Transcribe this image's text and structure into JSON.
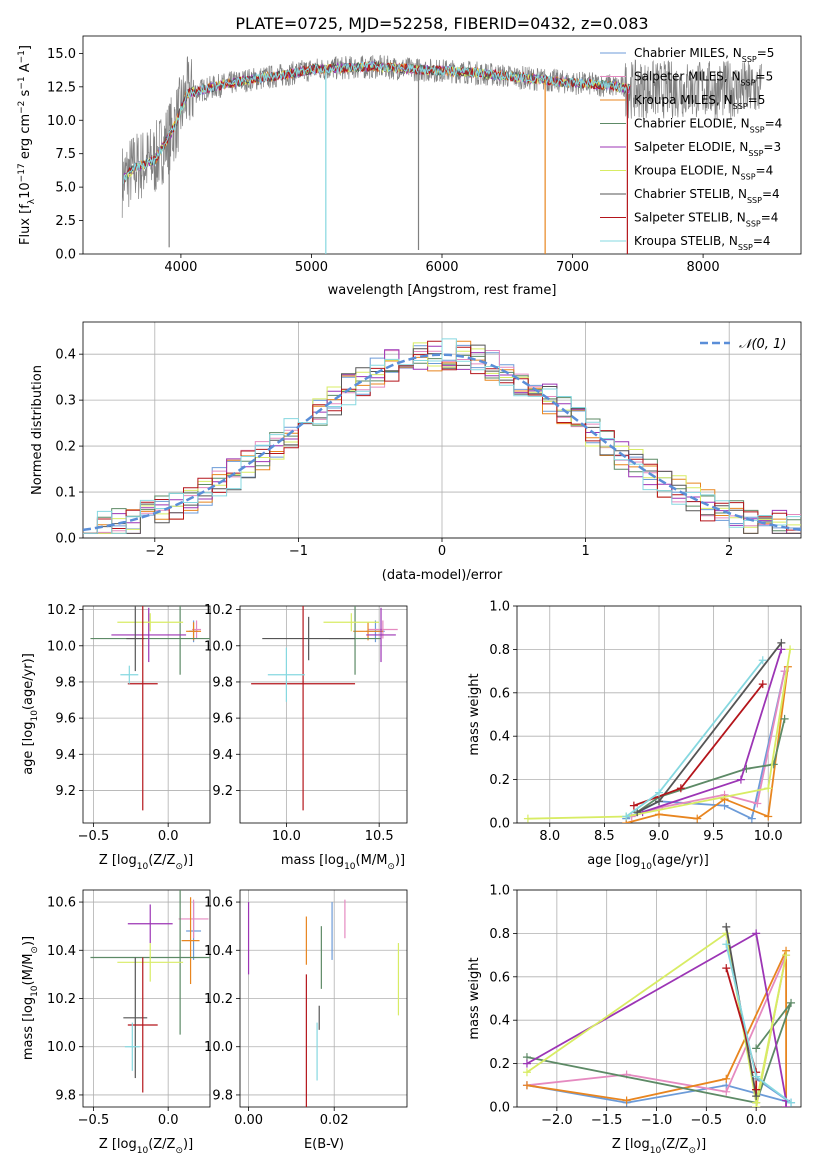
{
  "title": "PLATE=0725, MJD=52258, FIBERID=0432, z=0.083",
  "series_colors": {
    "chabrier_miles": "#6c9bd8",
    "salpeter_miles": "#e58ac0",
    "kroupa_miles": "#e8851f",
    "chabrier_elodie": "#5d8a66",
    "salpeter_elodie": "#9c35b5",
    "kroupa_elodie": "#d8ec64",
    "chabrier_stelib": "#555555",
    "salpeter_stelib": "#b4151b",
    "kroupa_stelib": "#86d8e0",
    "observed": "#808080",
    "normal_curve": "#5a8ed8"
  },
  "chart_data": [
    {
      "id": "spectrum",
      "type": "line",
      "title": "PLATE=0725, MJD=52258, FIBERID=0432, z=0.083",
      "xlabel": "wavelength [Angstrom, rest frame]",
      "ylabel_parts": {
        "a": "Flux [f",
        "sub1": "λ",
        "b": "10",
        "sup1": "−17",
        "c": " erg cm",
        "sup2": "−2",
        "d": " s",
        "sup3": "−1",
        "e": " A",
        "sup4": "−1",
        "f": "]"
      },
      "xlim": [
        3250,
        8750
      ],
      "ylim": [
        0,
        16.3
      ],
      "xticks": [
        4000,
        5000,
        6000,
        7000,
        8000
      ],
      "yticks": [
        0.0,
        2.5,
        5.0,
        7.5,
        10.0,
        12.5,
        15.0
      ],
      "legend_position": "upper right",
      "legend": [
        {
          "key": "chabrier_miles",
          "pre": "Chabrier MILES, N",
          "sub": "SSP",
          "post": "=5"
        },
        {
          "key": "salpeter_miles",
          "pre": "Salpeter MILES, N",
          "sub": "SSP",
          "post": "=5"
        },
        {
          "key": "kroupa_miles",
          "pre": "Kroupa MILES, N",
          "sub": "SSP",
          "post": "=5"
        },
        {
          "key": "chabrier_elodie",
          "pre": "Chabrier ELODIE, N",
          "sub": "SSP",
          "post": "=4"
        },
        {
          "key": "salpeter_elodie",
          "pre": "Salpeter ELODIE, N",
          "sub": "SSP",
          "post": "=3"
        },
        {
          "key": "kroupa_elodie",
          "pre": "Kroupa ELODIE, N",
          "sub": "SSP",
          "post": "=4"
        },
        {
          "key": "chabrier_stelib",
          "pre": "Chabrier STELIB, N",
          "sub": "SSP",
          "post": "=4"
        },
        {
          "key": "salpeter_stelib",
          "pre": "Salpeter STELIB, N",
          "sub": "SSP",
          "post": "=4"
        },
        {
          "key": "kroupa_stelib",
          "pre": "Kroupa STELIB, N",
          "sub": "SSP",
          "post": "=4"
        }
      ],
      "continuum": {
        "x": [
          3550,
          3650,
          3800,
          3950,
          4050,
          4300,
          4500,
          4800,
          5000,
          5200,
          5500,
          5800,
          6200,
          6600,
          7000,
          7300,
          7450
        ],
        "y": [
          5.5,
          6.5,
          7.0,
          9.5,
          12.0,
          12.6,
          13.0,
          13.4,
          13.8,
          13.9,
          14.0,
          13.8,
          13.6,
          13.2,
          12.8,
          12.6,
          12.3
        ]
      },
      "dips": [
        {
          "x": 5110,
          "y": 0.0
        },
        {
          "x": 6790,
          "y": 0.0
        },
        {
          "x": 7420,
          "y": 0.0
        },
        {
          "x": 3910,
          "y": 0.5
        },
        {
          "x": 5820,
          "y": 0.3
        }
      ]
    },
    {
      "id": "residuals",
      "type": "step",
      "xlabel": "(data-model)/error",
      "ylabel": "Normed distribution",
      "xlim": [
        -2.5,
        2.5
      ],
      "ylim": [
        0,
        0.47
      ],
      "xticks": [
        -2,
        -1,
        0,
        1,
        2
      ],
      "yticks": [
        0.0,
        0.1,
        0.2,
        0.3,
        0.4
      ],
      "grid": true,
      "legend_position": "upper right",
      "legend": [
        {
          "key": "normal_curve",
          "label": "𝒩(0, 1)"
        }
      ]
    },
    {
      "id": "age_vs_Z",
      "type": "errorbar",
      "xlabel_parts": {
        "a": "Z [log",
        "sub": "10",
        "b": "(Z/Z",
        "sub2": "⊙",
        "c": ")]"
      },
      "ylabel_parts": {
        "a": "age  [log",
        "sub": "10",
        "b": "(age/yr)]"
      },
      "xlim": [
        -0.57,
        0.28
      ],
      "ylim": [
        9.02,
        10.22
      ],
      "xticks": [
        -0.5,
        0.0
      ],
      "yticks": [
        9.2,
        9.4,
        9.6,
        9.8,
        10.0,
        10.2
      ],
      "grid": true,
      "points": [
        {
          "key": "chabrier_miles",
          "x": 0.17,
          "y": 10.08,
          "xerr": 0.03,
          "yerr": 0.06
        },
        {
          "key": "salpeter_miles",
          "x": 0.19,
          "y": 10.09,
          "xerr": 0.03,
          "yerr": 0.05
        },
        {
          "key": "kroupa_miles",
          "x": 0.17,
          "y": 10.08,
          "xerr": 0.05,
          "yerr": 0.05
        },
        {
          "key": "chabrier_elodie",
          "x": 0.08,
          "y": 10.04,
          "xerr": 0.6,
          "yerr": 0.2
        },
        {
          "key": "salpeter_elodie",
          "x": -0.13,
          "y": 10.06,
          "xerr": 0.25,
          "yerr": 0.15
        },
        {
          "key": "kroupa_elodie",
          "x": -0.12,
          "y": 10.13,
          "xerr": 0.22,
          "yerr": 0.05
        },
        {
          "key": "chabrier_stelib",
          "x": -0.22,
          "y": 10.04,
          "xerr": 0.06,
          "yerr": 0.18
        },
        {
          "key": "salpeter_stelib",
          "x": -0.17,
          "y": 9.79,
          "xerr": 0.1,
          "yerr": 0.7
        },
        {
          "key": "kroupa_stelib",
          "x": -0.26,
          "y": 9.84,
          "xerr": 0.06,
          "yerr": 0.05
        }
      ]
    },
    {
      "id": "age_vs_mass",
      "type": "errorbar",
      "xlabel_parts": {
        "a": "mass [log",
        "sub": "10",
        "b": "(M/M",
        "sub2": "⊙",
        "c": ")]"
      },
      "xlim": [
        9.75,
        10.65
      ],
      "ylim": [
        9.02,
        10.22
      ],
      "xticks": [
        10.0,
        10.5
      ],
      "yticks": [
        9.2,
        9.4,
        9.6,
        9.8,
        10.0,
        10.2
      ],
      "grid": true,
      "points": [
        {
          "key": "chabrier_miles",
          "x": 10.48,
          "y": 10.08,
          "xerr": 0.05,
          "yerr": 0.06
        },
        {
          "key": "salpeter_miles",
          "x": 10.52,
          "y": 10.09,
          "xerr": 0.08,
          "yerr": 0.05
        },
        {
          "key": "kroupa_miles",
          "x": 10.44,
          "y": 10.08,
          "xerr": 0.08,
          "yerr": 0.05
        },
        {
          "key": "chabrier_elodie",
          "x": 10.37,
          "y": 10.04,
          "xerr": 0.14,
          "yerr": 0.2
        },
        {
          "key": "salpeter_elodie",
          "x": 10.51,
          "y": 10.06,
          "xerr": 0.08,
          "yerr": 0.15
        },
        {
          "key": "kroupa_elodie",
          "x": 10.35,
          "y": 10.13,
          "xerr": 0.15,
          "yerr": 0.05
        },
        {
          "key": "chabrier_stelib",
          "x": 10.12,
          "y": 10.04,
          "xerr": 0.25,
          "yerr": 0.12
        },
        {
          "key": "salpeter_stelib",
          "x": 10.09,
          "y": 9.79,
          "xerr": 0.28,
          "yerr": 0.7
        },
        {
          "key": "kroupa_stelib",
          "x": 10.0,
          "y": 9.84,
          "xerr": 0.1,
          "yerr": 0.15
        }
      ]
    },
    {
      "id": "weight_vs_age",
      "type": "line",
      "xlabel_parts": {
        "a": "age  [log",
        "sub": "10",
        "b": "(age/yr)]"
      },
      "ylabel": "mass weight",
      "xlim": [
        7.7,
        10.3
      ],
      "ylim": [
        0.0,
        1.0
      ],
      "xticks": [
        8.0,
        8.5,
        9.0,
        9.5,
        10.0
      ],
      "yticks": [
        0.0,
        0.2,
        0.4,
        0.6,
        0.8,
        1.0
      ],
      "grid": true,
      "series": [
        {
          "key": "chabrier_miles",
          "x": [
            8.7,
            9.0,
            9.6,
            9.85,
            10.15
          ],
          "y": [
            0.02,
            0.1,
            0.08,
            0.02,
            0.7
          ]
        },
        {
          "key": "salpeter_miles",
          "x": [
            8.75,
            9.0,
            9.6,
            9.9,
            10.15
          ],
          "y": [
            0.03,
            0.07,
            0.13,
            0.09,
            0.7
          ]
        },
        {
          "key": "kroupa_miles",
          "x": [
            8.7,
            9.0,
            9.35,
            9.6,
            10.0,
            10.18
          ],
          "y": [
            0.0,
            0.04,
            0.02,
            0.11,
            0.03,
            0.72
          ]
        },
        {
          "key": "chabrier_elodie",
          "x": [
            8.8,
            9.0,
            9.8,
            10.05,
            10.15
          ],
          "y": [
            0.05,
            0.12,
            0.25,
            0.27,
            0.48
          ]
        },
        {
          "key": "salpeter_elodie",
          "x": [
            8.85,
            9.75,
            10.12
          ],
          "y": [
            0.05,
            0.2,
            0.8
          ]
        },
        {
          "key": "kroupa_elodie",
          "x": [
            7.8,
            8.7,
            10.0,
            10.2
          ],
          "y": [
            0.02,
            0.03,
            0.16,
            0.8
          ]
        },
        {
          "key": "chabrier_stelib",
          "x": [
            8.8,
            9.0,
            10.12
          ],
          "y": [
            0.05,
            0.1,
            0.83
          ]
        },
        {
          "key": "salpeter_stelib",
          "x": [
            8.77,
            9.2,
            9.95
          ],
          "y": [
            0.08,
            0.16,
            0.64
          ]
        },
        {
          "key": "kroupa_stelib",
          "x": [
            8.7,
            9.0,
            9.95
          ],
          "y": [
            0.03,
            0.14,
            0.75
          ]
        }
      ]
    },
    {
      "id": "mass_vs_Z",
      "type": "errorbar",
      "xlabel_parts": {
        "a": "Z [log",
        "sub": "10",
        "b": "(Z/Z",
        "sub2": "⊙",
        "c": ")]"
      },
      "ylabel_parts": {
        "a": "mass [log",
        "sub": "10",
        "b": "(M/M",
        "sub2": "⊙",
        "c": ")]"
      },
      "xlim": [
        -0.57,
        0.28
      ],
      "ylim": [
        9.75,
        10.65
      ],
      "xticks": [
        -0.5,
        0.0
      ],
      "yticks": [
        9.8,
        10.0,
        10.2,
        10.4,
        10.6
      ],
      "grid": true,
      "points": [
        {
          "key": "chabrier_miles",
          "x": 0.17,
          "y": 10.48,
          "xerr": 0.05,
          "yerr": 0.12
        },
        {
          "key": "salpeter_miles",
          "x": 0.17,
          "y": 10.53,
          "xerr": 0.1,
          "yerr": 0.08
        },
        {
          "key": "kroupa_miles",
          "x": 0.15,
          "y": 10.44,
          "xerr": 0.06,
          "yerr": 0.18
        },
        {
          "key": "chabrier_elodie",
          "x": 0.08,
          "y": 10.37,
          "xerr": 0.6,
          "yerr": 0.32
        },
        {
          "key": "salpeter_elodie",
          "x": -0.12,
          "y": 10.51,
          "xerr": 0.15,
          "yerr": 0.08
        },
        {
          "key": "kroupa_elodie",
          "x": -0.12,
          "y": 10.35,
          "xerr": 0.22,
          "yerr": 0.08
        },
        {
          "key": "chabrier_stelib",
          "x": -0.22,
          "y": 10.12,
          "xerr": 0.08,
          "yerr": 0.25
        },
        {
          "key": "salpeter_stelib",
          "x": -0.17,
          "y": 10.09,
          "xerr": 0.1,
          "yerr": 0.28
        },
        {
          "key": "kroupa_stelib",
          "x": -0.24,
          "y": 10.0,
          "xerr": 0.05,
          "yerr": 0.1
        }
      ]
    },
    {
      "id": "mass_vs_ebv",
      "type": "errorbar",
      "xlabel": "E(B-V)",
      "xlim": [
        -0.002,
        0.037
      ],
      "ylim": [
        9.75,
        10.65
      ],
      "xticks": [
        0.0,
        0.02
      ],
      "yticks": [
        9.8,
        10.0,
        10.2,
        10.4,
        10.6
      ],
      "grid": true,
      "points": [
        {
          "key": "chabrier_miles",
          "x": 0.0195,
          "y": 10.48,
          "xerr": 0,
          "yerr": 0.12
        },
        {
          "key": "salpeter_miles",
          "x": 0.0225,
          "y": 10.53,
          "xerr": 0,
          "yerr": 0.08
        },
        {
          "key": "kroupa_miles",
          "x": 0.0135,
          "y": 10.44,
          "xerr": 0,
          "yerr": 0.1
        },
        {
          "key": "chabrier_elodie",
          "x": 0.017,
          "y": 10.37,
          "xerr": 0,
          "yerr": 0.13
        },
        {
          "key": "salpeter_elodie",
          "x": 0.0,
          "y": 10.45,
          "xerr": 0,
          "yerr": 0.15
        },
        {
          "key": "kroupa_elodie",
          "x": 0.035,
          "y": 10.28,
          "xerr": 0,
          "yerr": 0.15
        },
        {
          "key": "chabrier_stelib",
          "x": 0.0165,
          "y": 10.12,
          "xerr": 0,
          "yerr": 0.05
        },
        {
          "key": "salpeter_stelib",
          "x": 0.0135,
          "y": 10.0,
          "xerr": 0,
          "yerr": 0.3
        },
        {
          "key": "kroupa_stelib",
          "x": 0.016,
          "y": 9.98,
          "xerr": 0,
          "yerr": 0.12
        }
      ]
    },
    {
      "id": "weight_vs_Z",
      "type": "line",
      "xlabel_parts": {
        "a": "Z [log",
        "sub": "10",
        "b": "(Z/Z",
        "sub2": "⊙",
        "c": ")]"
      },
      "ylabel": "mass weight",
      "xlim": [
        -2.4,
        0.45
      ],
      "ylim": [
        0.0,
        1.0
      ],
      "xticks": [
        -2.0,
        -1.5,
        -1.0,
        -0.5,
        0.0
      ],
      "yticks": [
        0.0,
        0.2,
        0.4,
        0.6,
        0.8,
        1.0
      ],
      "grid": true,
      "series": [
        {
          "key": "chabrier_miles",
          "x": [
            -2.3,
            -1.3,
            -0.3,
            0.35,
            0.0
          ],
          "y": [
            0.1,
            0.02,
            0.1,
            0.02,
            0.13
          ]
        },
        {
          "key": "salpeter_miles",
          "x": [
            -2.3,
            -1.3,
            -0.3,
            0.3,
            0.0
          ],
          "y": [
            0.1,
            0.15,
            0.07,
            0.7,
            0.0
          ]
        },
        {
          "key": "kroupa_miles",
          "x": [
            -2.3,
            -1.3,
            -0.3,
            0.3,
            0.3
          ],
          "y": [
            0.1,
            0.03,
            0.13,
            0.72,
            0.0
          ]
        },
        {
          "key": "chabrier_elodie",
          "x": [
            -2.3,
            0.0,
            0.35,
            0.0
          ],
          "y": [
            0.23,
            0.02,
            0.48,
            0.27
          ]
        },
        {
          "key": "salpeter_elodie",
          "x": [
            -2.3,
            0.0,
            0.3,
            0.3
          ],
          "y": [
            0.2,
            0.8,
            0.03,
            0.0
          ]
        },
        {
          "key": "kroupa_elodie",
          "x": [
            -2.3,
            -0.3,
            0.0,
            0.3,
            0.0
          ],
          "y": [
            0.16,
            0.8,
            0.02,
            0.7,
            0.0
          ]
        },
        {
          "key": "chabrier_stelib",
          "x": [
            -0.3,
            0.0,
            0.0
          ],
          "y": [
            0.83,
            0.05,
            0.08
          ]
        },
        {
          "key": "salpeter_stelib",
          "x": [
            -0.3,
            0.0,
            0.0
          ],
          "y": [
            0.64,
            0.16,
            0.08
          ]
        },
        {
          "key": "kroupa_stelib",
          "x": [
            -0.3,
            0.0,
            0.35
          ],
          "y": [
            0.75,
            0.14,
            0.02
          ]
        }
      ]
    }
  ]
}
